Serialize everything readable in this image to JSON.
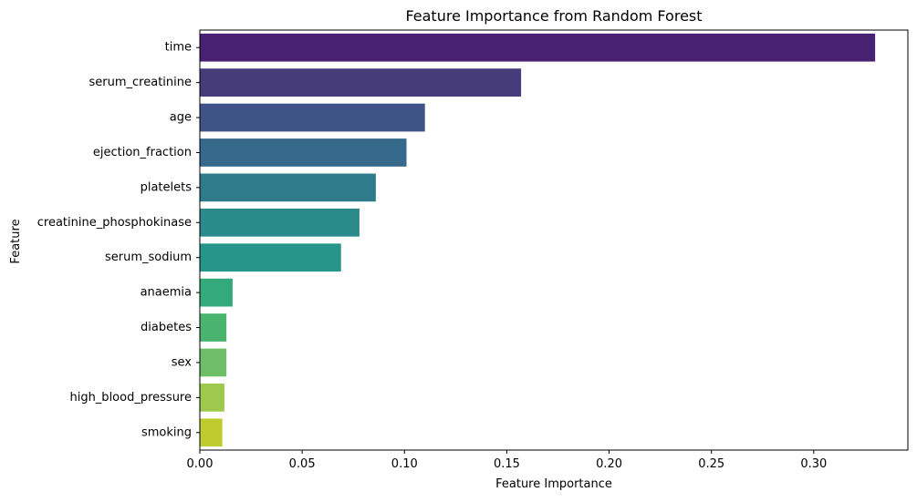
{
  "chart_data": {
    "type": "bar",
    "orientation": "horizontal",
    "title": "Feature Importance from Random Forest",
    "xlabel": "Feature Importance",
    "ylabel": "Feature",
    "categories": [
      "time",
      "serum_creatinine",
      "age",
      "ejection_fraction",
      "platelets",
      "creatinine_phosphokinase",
      "serum_sodium",
      "anaemia",
      "diabetes",
      "sex",
      "high_blood_pressure",
      "smoking"
    ],
    "values": [
      0.33,
      0.157,
      0.11,
      0.101,
      0.086,
      0.078,
      0.069,
      0.016,
      0.013,
      0.013,
      0.012,
      0.011
    ],
    "xlim": [
      0,
      0.346
    ],
    "xticks": [
      0.0,
      0.05,
      0.1,
      0.15,
      0.2,
      0.25,
      0.3
    ],
    "xtick_labels": [
      "0.00",
      "0.05",
      "0.10",
      "0.15",
      "0.20",
      "0.25",
      "0.30"
    ],
    "colormap": "viridis",
    "colors": [
      "#482173",
      "#463b7b",
      "#3f5389",
      "#37698c",
      "#2f7b8c",
      "#2a8a8c",
      "#28958a",
      "#34aa7c",
      "#4ab46f",
      "#6ebe67",
      "#9cc94e",
      "#bfcc2f"
    ],
    "grid": false,
    "legend": "none"
  }
}
